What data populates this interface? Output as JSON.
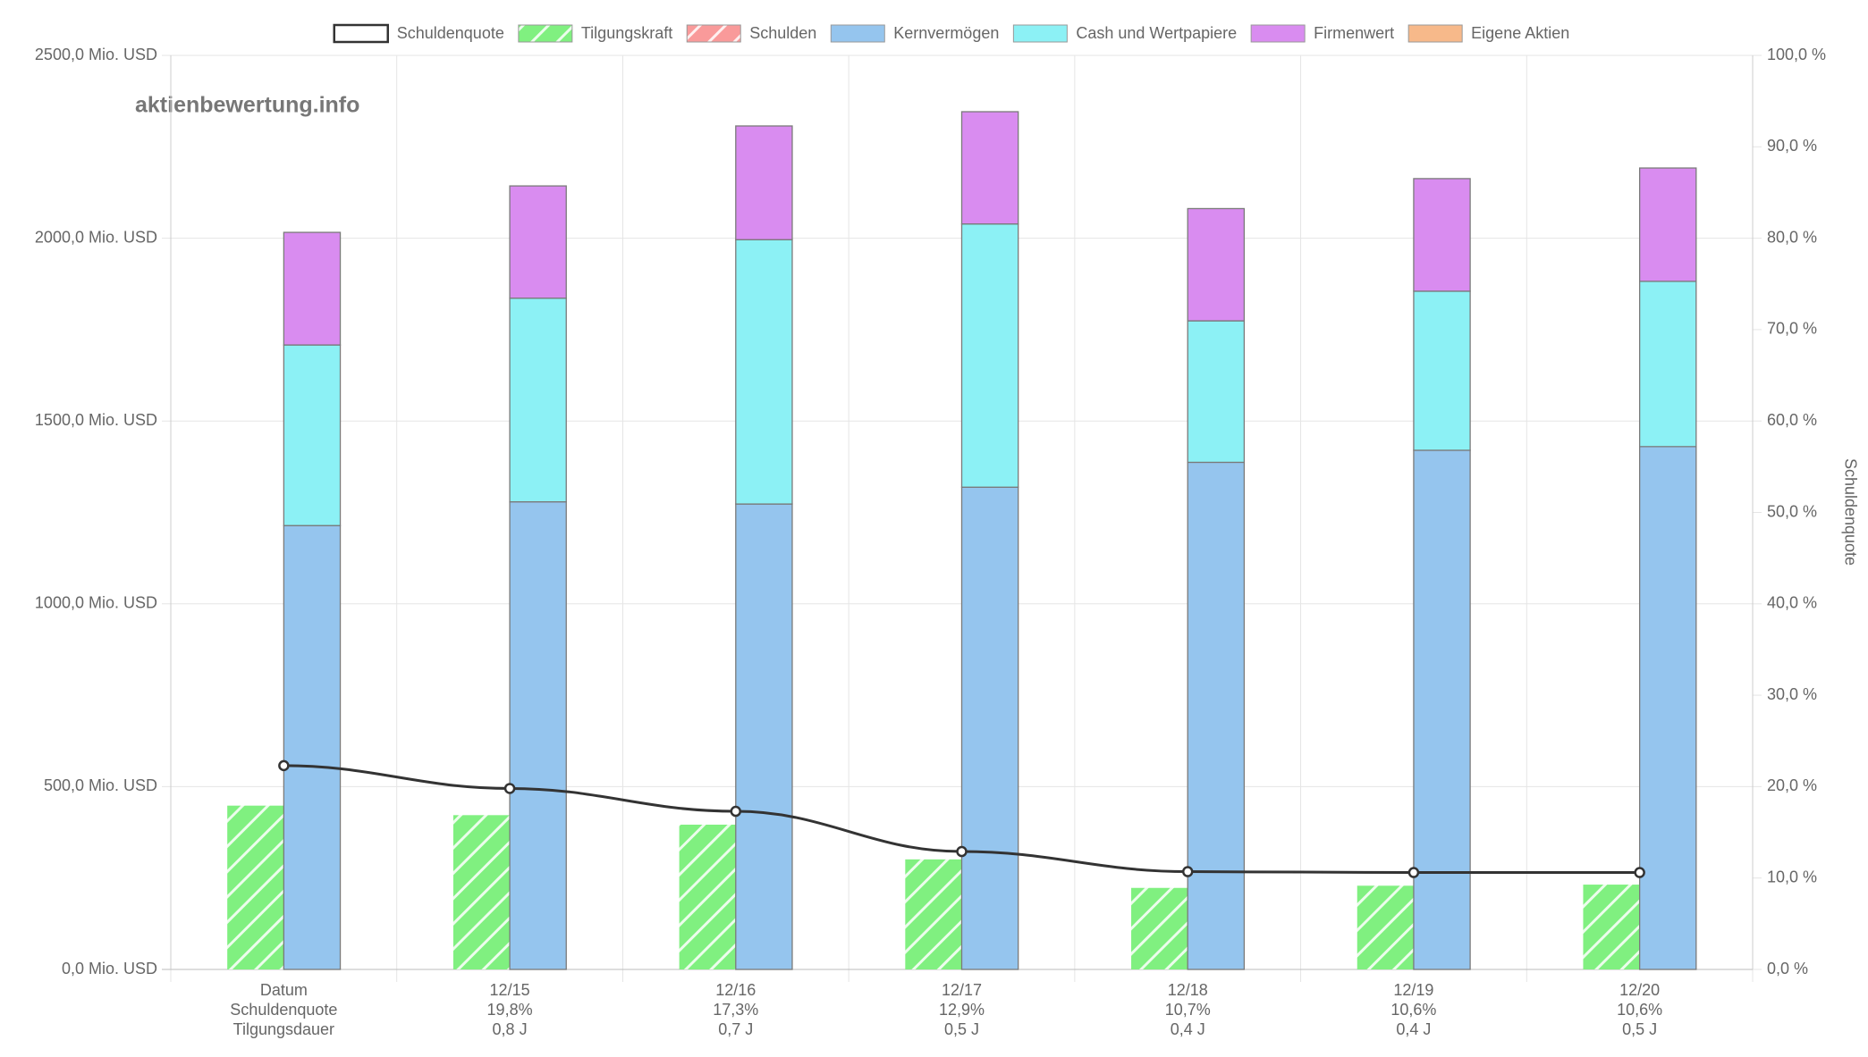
{
  "chart_data": {
    "type": "bar",
    "watermark": "aktienbewertung.info",
    "categories": [
      [
        "Datum",
        "Schuldenquote",
        "Tilgungsdauer"
      ],
      [
        "12/15",
        "19,8%",
        "0,8 J"
      ],
      [
        "12/16",
        "17,3%",
        "0,7 J"
      ],
      [
        "12/17",
        "12,9%",
        "0,5 J"
      ],
      [
        "12/18",
        "10,7%",
        "0,4 J"
      ],
      [
        "12/19",
        "10,6%",
        "0,4 J"
      ],
      [
        "12/20",
        "10,6%",
        "0,5 J"
      ]
    ],
    "series": [
      {
        "name": "Schuldenquote",
        "type": "line",
        "axis": "y2",
        "color": "#333333",
        "values": [
          22.3,
          19.8,
          17.3,
          12.9,
          10.7,
          10.6,
          10.6
        ]
      },
      {
        "name": "Tilgungskraft",
        "type": "bar",
        "stack": "left",
        "pattern": "hatch",
        "color": "#80f080",
        "values": [
          448,
          422,
          396,
          301,
          223,
          229,
          232
        ]
      },
      {
        "name": "Schulden",
        "type": "bar",
        "stack": "left",
        "pattern": "hatch",
        "color": "#f99a9a",
        "values": [
          null,
          null,
          null,
          null,
          null,
          null,
          null
        ]
      },
      {
        "name": "Kernvermögen",
        "type": "bar",
        "stack": "right",
        "color": "#95c5ee",
        "values": [
          1214,
          1279,
          1273,
          1319,
          1387,
          1420,
          1430
        ]
      },
      {
        "name": "Cash und Wertpapiere",
        "type": "bar",
        "stack": "right",
        "color": "#8cf1f5",
        "values": [
          494,
          557,
          723,
          720,
          387,
          435,
          452
        ]
      },
      {
        "name": "Firmenwert",
        "type": "bar",
        "stack": "right",
        "color": "#d98cf0",
        "values": [
          308,
          307,
          311,
          307,
          307,
          308,
          310
        ]
      },
      {
        "name": "Eigene Aktien",
        "type": "bar",
        "stack": "right",
        "color": "#f7b98a",
        "values": [
          null,
          null,
          null,
          null,
          null,
          null,
          null
        ]
      }
    ],
    "ylim": [
      0,
      2500
    ],
    "yticks": [
      {
        "value": 0,
        "label": "0,0 Mio. USD"
      },
      {
        "value": 500,
        "label": "500,0 Mio. USD"
      },
      {
        "value": 1000,
        "label": "1000,0 Mio. USD"
      },
      {
        "value": 1500,
        "label": "1500,0 Mio. USD"
      },
      {
        "value": 2000,
        "label": "2000,0 Mio. USD"
      },
      {
        "value": 2500,
        "label": "2500,0 Mio. USD"
      }
    ],
    "y2label": "Schuldenquote",
    "y2lim": [
      0,
      100
    ],
    "y2ticks": [
      {
        "value": 0,
        "label": "0,0 %"
      },
      {
        "value": 10,
        "label": "10,0 %"
      },
      {
        "value": 20,
        "label": "20,0 %"
      },
      {
        "value": 30,
        "label": "30,0 %"
      },
      {
        "value": 40,
        "label": "40,0 %"
      },
      {
        "value": 50,
        "label": "50,0 %"
      },
      {
        "value": 60,
        "label": "60,0 %"
      },
      {
        "value": 70,
        "label": "70,0 %"
      },
      {
        "value": 80,
        "label": "80,0 %"
      },
      {
        "value": 90,
        "label": "90,0 %"
      },
      {
        "value": 100,
        "label": "100,0 %"
      }
    ],
    "grid": true,
    "legend": "top"
  }
}
